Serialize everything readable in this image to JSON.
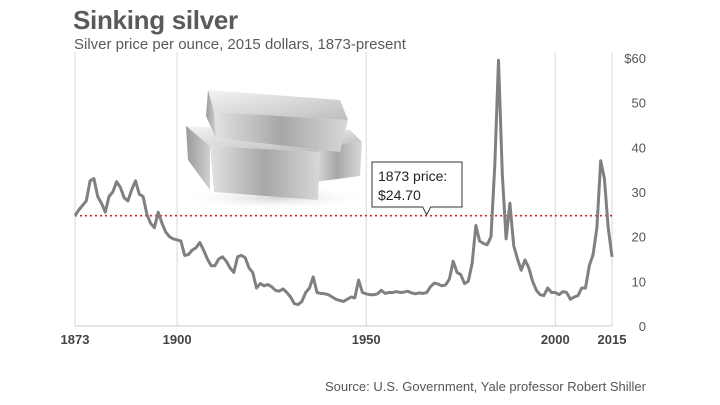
{
  "chart_data": {
    "type": "line",
    "title": "Sinking silver",
    "subtitle": "Silver price per ounce, 2015 dollars, 1873-present",
    "xlabel": "",
    "ylabel": "",
    "xlim": [
      1873,
      2015
    ],
    "ylim": [
      0,
      60
    ],
    "xticks": [
      {
        "value": 1873,
        "label": "1873"
      },
      {
        "value": 1900,
        "label": "1900"
      },
      {
        "value": 1950,
        "label": "1950"
      },
      {
        "value": 2000,
        "label": "2000"
      },
      {
        "value": 2015,
        "label": "2015"
      }
    ],
    "yticks": [
      {
        "value": 0,
        "label": "0"
      },
      {
        "value": 10,
        "label": "10"
      },
      {
        "value": 20,
        "label": "20"
      },
      {
        "value": 30,
        "label": "30"
      },
      {
        "value": 40,
        "label": "40"
      },
      {
        "value": 50,
        "label": "50"
      },
      {
        "value": 60,
        "label": "$60"
      }
    ],
    "grid": "vertical",
    "series": [
      {
        "color": "#808080",
        "points": [
          [
            1873,
            24.7
          ],
          [
            1874,
            26
          ],
          [
            1875,
            27
          ],
          [
            1876,
            28
          ],
          [
            1877,
            32.5
          ],
          [
            1878,
            33
          ],
          [
            1879,
            29
          ],
          [
            1880,
            27.5
          ],
          [
            1881,
            25.5
          ],
          [
            1882,
            29
          ],
          [
            1883,
            30
          ],
          [
            1884,
            32.3
          ],
          [
            1885,
            31
          ],
          [
            1886,
            28.7
          ],
          [
            1887,
            28
          ],
          [
            1888,
            30.5
          ],
          [
            1889,
            32.5
          ],
          [
            1890,
            29.5
          ],
          [
            1891,
            29
          ],
          [
            1892,
            25
          ],
          [
            1893,
            23
          ],
          [
            1894,
            22
          ],
          [
            1895,
            25.5
          ],
          [
            1896,
            23
          ],
          [
            1897,
            21
          ],
          [
            1898,
            20
          ],
          [
            1899,
            19.5
          ],
          [
            1900,
            19.3
          ],
          [
            1901,
            19
          ],
          [
            1902,
            15.8
          ],
          [
            1903,
            16
          ],
          [
            1904,
            17
          ],
          [
            1905,
            17.5
          ],
          [
            1906,
            18.7
          ],
          [
            1907,
            17
          ],
          [
            1908,
            15
          ],
          [
            1909,
            13.5
          ],
          [
            1910,
            13.5
          ],
          [
            1911,
            15
          ],
          [
            1912,
            15.5
          ],
          [
            1913,
            14.5
          ],
          [
            1914,
            13
          ],
          [
            1915,
            12
          ],
          [
            1916,
            15.5
          ],
          [
            1917,
            15.8
          ],
          [
            1918,
            15.3
          ],
          [
            1919,
            13
          ],
          [
            1920,
            12
          ],
          [
            1921,
            8.5
          ],
          [
            1922,
            9.5
          ],
          [
            1923,
            9
          ],
          [
            1924,
            9.3
          ],
          [
            1925,
            8.8
          ],
          [
            1926,
            8
          ],
          [
            1927,
            7.8
          ],
          [
            1928,
            8.3
          ],
          [
            1929,
            7.5
          ],
          [
            1930,
            6.5
          ],
          [
            1931,
            5
          ],
          [
            1932,
            4.8
          ],
          [
            1933,
            5.5
          ],
          [
            1934,
            7.5
          ],
          [
            1935,
            8.5
          ],
          [
            1936,
            11
          ],
          [
            1937,
            7.5
          ],
          [
            1938,
            7.3
          ],
          [
            1939,
            7.2
          ],
          [
            1940,
            7
          ],
          [
            1941,
            6.5
          ],
          [
            1942,
            6
          ],
          [
            1943,
            5.7
          ],
          [
            1944,
            5.5
          ],
          [
            1945,
            6
          ],
          [
            1946,
            6.5
          ],
          [
            1947,
            6.3
          ],
          [
            1948,
            10.3
          ],
          [
            1949,
            7.5
          ],
          [
            1950,
            7.2
          ],
          [
            1951,
            7
          ],
          [
            1952,
            7
          ],
          [
            1953,
            7.2
          ],
          [
            1954,
            8
          ],
          [
            1955,
            7.3
          ],
          [
            1956,
            7.5
          ],
          [
            1957,
            7.5
          ],
          [
            1958,
            7.7
          ],
          [
            1959,
            7.5
          ],
          [
            1960,
            7.6
          ],
          [
            1961,
            7.8
          ],
          [
            1962,
            7.4
          ],
          [
            1963,
            7.2
          ],
          [
            1964,
            7.4
          ],
          [
            1965,
            7.3
          ],
          [
            1966,
            7.5
          ],
          [
            1967,
            8.8
          ],
          [
            1968,
            9.6
          ],
          [
            1969,
            9.4
          ],
          [
            1970,
            9
          ],
          [
            1971,
            9.2
          ],
          [
            1972,
            10.5
          ],
          [
            1973,
            14.5
          ],
          [
            1974,
            12
          ],
          [
            1975,
            11.5
          ],
          [
            1976,
            9.5
          ],
          [
            1977,
            10
          ],
          [
            1978,
            14
          ],
          [
            1979,
            22.5
          ],
          [
            1980,
            19
          ],
          [
            1981,
            18.5
          ],
          [
            1982,
            18.2
          ],
          [
            1983,
            20
          ],
          [
            1984,
            36
          ],
          [
            1985,
            59.5
          ],
          [
            1986,
            34
          ],
          [
            1987,
            19.5
          ],
          [
            1988,
            27.5
          ],
          [
            1989,
            18
          ],
          [
            1990,
            15
          ],
          [
            1991,
            12.5
          ],
          [
            1992,
            14.8
          ],
          [
            1993,
            13
          ],
          [
            1994,
            10
          ],
          [
            1995,
            8
          ],
          [
            1996,
            7
          ],
          [
            1997,
            6.8
          ],
          [
            1998,
            8.5
          ],
          [
            1999,
            7.5
          ],
          [
            2000,
            7.5
          ],
          [
            2001,
            7
          ],
          [
            2002,
            7.7
          ],
          [
            2003,
            7.5
          ],
          [
            2004,
            6
          ],
          [
            2005,
            6.5
          ],
          [
            2006,
            6.8
          ],
          [
            2007,
            8.5
          ],
          [
            2008,
            8.5
          ],
          [
            2009,
            13.5
          ],
          [
            2010,
            16
          ],
          [
            2011,
            22
          ],
          [
            2012,
            37
          ],
          [
            2013,
            33
          ],
          [
            2014,
            22
          ],
          [
            2015,
            15.5
          ]
        ]
      }
    ],
    "reference_line": {
      "value": 24.7,
      "color": "#d62728",
      "style": "dotted"
    },
    "annotation": {
      "lines": [
        "1873 price:",
        "$24.70"
      ],
      "x": 1966,
      "y": 24.7
    }
  },
  "source": "Source: U.S. Government, Yale professor Robert Shiller",
  "illustration": "silver-bars-image"
}
